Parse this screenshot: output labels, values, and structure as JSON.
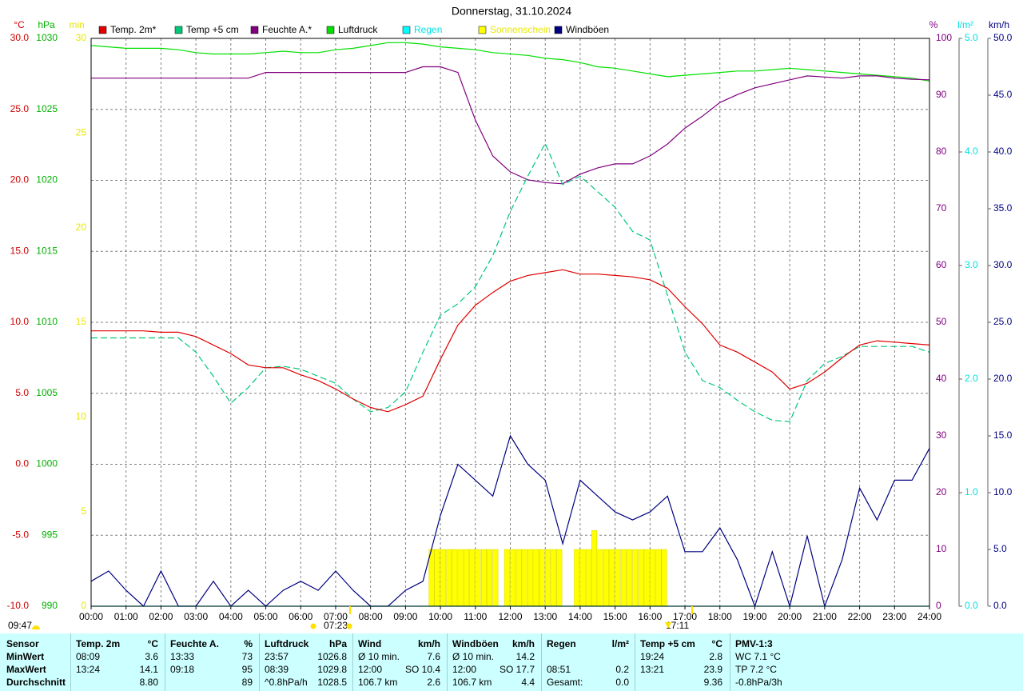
{
  "chart_data": {
    "type": "line",
    "title": "Donnerstag, 31.10.2024",
    "xlim": [
      0,
      24
    ],
    "xticks": [
      {
        "value": 0,
        "label": "00:00"
      },
      {
        "value": 1,
        "label": "01:00"
      },
      {
        "value": 2,
        "label": "02:00"
      },
      {
        "value": 3,
        "label": "03:00"
      },
      {
        "value": 4,
        "label": "04:00"
      },
      {
        "value": 5,
        "label": "05:00"
      },
      {
        "value": 6,
        "label": "06:00"
      },
      {
        "value": 7,
        "label": "07:00"
      },
      {
        "value": 8,
        "label": "08:00"
      },
      {
        "value": 9,
        "label": "09:00"
      },
      {
        "value": 10,
        "label": "10:00"
      },
      {
        "value": 11,
        "label": "11:00"
      },
      {
        "value": 12,
        "label": "12:00"
      },
      {
        "value": 13,
        "label": "13:00"
      },
      {
        "value": 14,
        "label": "14:00"
      },
      {
        "value": 15,
        "label": "15:00"
      },
      {
        "value": 16,
        "label": "16:00"
      },
      {
        "value": 17,
        "label": "17:00"
      },
      {
        "value": 18,
        "label": "18:00"
      },
      {
        "value": 19,
        "label": "19:00"
      },
      {
        "value": 20,
        "label": "20:00"
      },
      {
        "value": 21,
        "label": "21:00"
      },
      {
        "value": 22,
        "label": "22:00"
      },
      {
        "value": 23,
        "label": "23:00"
      },
      {
        "value": 24,
        "label": "24:00"
      }
    ],
    "grid": true,
    "axes": [
      {
        "label": "°C",
        "color": "#d00000",
        "ylim": [
          -10,
          30
        ],
        "yticks": [
          {
            "value": -10,
            "label": "-10.0"
          },
          {
            "value": -5,
            "label": "-5.0"
          },
          {
            "value": 0,
            "label": "0.0"
          },
          {
            "value": 5,
            "label": "5.0"
          },
          {
            "value": 10,
            "label": "10.0"
          },
          {
            "value": 15,
            "label": "15.0"
          },
          {
            "value": 20,
            "label": "20.0"
          },
          {
            "value": 25,
            "label": "25.0"
          },
          {
            "value": 30,
            "label": "30.0"
          }
        ]
      },
      {
        "label": "hPa",
        "color": "#00b000",
        "ylim": [
          990,
          1030
        ],
        "yticks": [
          990,
          995,
          1000,
          1005,
          1010,
          1015,
          1020,
          1025,
          1030
        ]
      },
      {
        "label": "min",
        "color": "#e8e800",
        "ylim": [
          0,
          30
        ],
        "yticks": [
          0,
          5,
          10,
          15,
          20,
          25,
          30
        ]
      },
      {
        "label": "%",
        "color": "#800080",
        "ylim": [
          0,
          100
        ],
        "yticks": [
          0,
          10,
          20,
          30,
          40,
          50,
          60,
          70,
          80,
          90,
          100
        ]
      },
      {
        "label": "l/m²",
        "color": "#00e0e0",
        "ylim": [
          0,
          5
        ],
        "yticks": [
          {
            "value": 0,
            "label": "0.0"
          },
          {
            "value": 1,
            "label": "1.0"
          },
          {
            "value": 2,
            "label": "2.0"
          },
          {
            "value": 3,
            "label": "3.0"
          },
          {
            "value": 4,
            "label": "4.0"
          },
          {
            "value": 5,
            "label": "5.0"
          }
        ]
      },
      {
        "label": "km/h",
        "color": "#000080",
        "ylim": [
          0,
          50
        ],
        "yticks": [
          {
            "value": 0,
            "label": "0.0"
          },
          {
            "value": 5,
            "label": "5.0"
          },
          {
            "value": 10,
            "label": "10.0"
          },
          {
            "value": 15,
            "label": "15.0"
          },
          {
            "value": 20,
            "label": "20.0"
          },
          {
            "value": 25,
            "label": "25.0"
          },
          {
            "value": 30,
            "label": "30.0"
          },
          {
            "value": 35,
            "label": "35.0"
          },
          {
            "value": 40,
            "label": "40.0"
          },
          {
            "value": 45,
            "label": "45.0"
          },
          {
            "value": 50,
            "label": "50.0"
          }
        ]
      }
    ],
    "x": [
      0,
      0.5,
      1,
      1.5,
      2,
      2.5,
      3,
      3.5,
      4,
      4.5,
      5,
      5.5,
      6,
      6.5,
      7,
      7.5,
      8,
      8.5,
      9,
      9.5,
      10,
      10.5,
      11,
      11.5,
      12,
      12.5,
      13,
      13.5,
      14,
      14.5,
      15,
      15.5,
      16,
      16.5,
      17,
      17.5,
      18,
      18.5,
      19,
      19.5,
      20,
      20.5,
      21,
      21.5,
      22,
      22.5,
      23,
      23.5,
      24
    ],
    "series": [
      {
        "name": "Temp. 2m*",
        "color": "#e00000",
        "axis": 0,
        "values": [
          9.4,
          9.4,
          9.4,
          9.4,
          9.3,
          9.3,
          9.0,
          8.4,
          7.8,
          7.0,
          6.8,
          6.8,
          6.3,
          5.9,
          5.3,
          4.6,
          4.0,
          3.7,
          4.2,
          4.8,
          7.4,
          9.8,
          11.2,
          12.1,
          12.9,
          13.3,
          13.5,
          13.7,
          13.4,
          13.4,
          13.3,
          13.2,
          13.0,
          12.4,
          11.1,
          9.9,
          8.4,
          7.9,
          7.2,
          6.5,
          5.3,
          5.7,
          6.5,
          7.5,
          8.4,
          8.7,
          8.6,
          8.5,
          8.4
        ]
      },
      {
        "name": "Temp +5 cm",
        "color": "#00c878",
        "axis": 0,
        "dash": true,
        "values": [
          8.9,
          8.9,
          8.9,
          8.9,
          8.9,
          8.9,
          7.9,
          6.2,
          4.3,
          5.4,
          6.8,
          6.9,
          6.7,
          6.2,
          5.7,
          4.6,
          3.7,
          4.0,
          5.1,
          7.9,
          10.5,
          11.3,
          12.5,
          14.7,
          17.8,
          20.3,
          22.6,
          19.7,
          20.3,
          19.2,
          18.1,
          16.4,
          15.8,
          11.9,
          7.9,
          5.9,
          5.4,
          4.5,
          3.7,
          3.1,
          3.0,
          5.9,
          7.1,
          7.6,
          8.3,
          8.3,
          8.3,
          8.3,
          7.9
        ]
      },
      {
        "name": "Feuchte A.*",
        "color": "#800080",
        "axis": 3,
        "values": [
          93,
          93,
          93,
          93,
          93,
          93,
          93,
          93,
          93,
          93,
          94,
          94,
          94,
          94,
          94,
          94,
          94,
          94,
          94,
          95,
          95,
          94,
          85.6,
          79.3,
          76.5,
          75.1,
          74.6,
          74.4,
          76.1,
          77.2,
          77.9,
          77.9,
          79.3,
          81.4,
          84.2,
          86.3,
          88.7,
          90.1,
          91.3,
          92,
          92.7,
          93.4,
          93.2,
          93,
          93.4,
          93.4,
          93,
          92.8,
          92.7
        ]
      },
      {
        "name": "Luftdruck",
        "color": "#00e000",
        "axis": 1,
        "values": [
          1029.5,
          1029.4,
          1029.3,
          1029.3,
          1029.3,
          1029.2,
          1029.0,
          1028.9,
          1028.9,
          1028.9,
          1029.0,
          1029.1,
          1029.0,
          1029.0,
          1029.2,
          1029.3,
          1029.5,
          1029.7,
          1029.7,
          1029.6,
          1029.4,
          1029.3,
          1029.2,
          1029.0,
          1028.9,
          1028.8,
          1028.6,
          1028.5,
          1028.3,
          1028.0,
          1027.9,
          1027.7,
          1027.5,
          1027.3,
          1027.4,
          1027.5,
          1027.6,
          1027.7,
          1027.7,
          1027.8,
          1027.9,
          1027.8,
          1027.7,
          1027.6,
          1027.5,
          1027.4,
          1027.3,
          1027.2,
          1027.0
        ]
      },
      {
        "name": "Regen",
        "color": "#00ffff",
        "axis": 4,
        "text_color": "#00e0e0",
        "values": [
          0,
          0,
          0,
          0,
          0,
          0,
          0,
          0,
          0,
          0,
          0,
          0,
          0,
          0,
          0,
          0,
          0,
          0,
          0,
          0,
          0,
          0,
          0,
          0,
          0,
          0,
          0,
          0,
          0,
          0,
          0,
          0,
          0,
          0,
          0,
          0,
          0,
          0,
          0,
          0,
          0,
          0,
          0,
          0,
          0,
          0,
          0,
          0,
          0
        ]
      },
      {
        "name": "Sonnenschein",
        "color": "#ffff00",
        "axis": 2,
        "type": "bar",
        "text_color": "#e8e800",
        "x": [
          9.67,
          9.83,
          10,
          10.17,
          10.33,
          10.5,
          10.67,
          10.83,
          11,
          11.17,
          11.33,
          11.5,
          11.83,
          12,
          12.17,
          12.33,
          12.5,
          12.67,
          12.83,
          13,
          13.17,
          13.33,
          13.83,
          14,
          14.17,
          14.33,
          14.5,
          14.67,
          14.83,
          15,
          15.17,
          15.33,
          15.5,
          15.67,
          15.83,
          16,
          16.17,
          16.33
        ],
        "values": [
          3,
          3,
          3,
          3,
          3,
          3,
          3,
          3,
          3,
          3,
          3,
          3,
          3,
          3,
          3,
          3,
          3,
          3,
          3,
          3,
          3,
          3,
          3,
          3,
          3,
          4,
          3,
          3,
          3,
          3,
          3,
          3,
          3,
          3,
          3,
          3,
          3,
          3
        ]
      },
      {
        "name": "Windböen",
        "color": "#000080",
        "axis": 5,
        "values": [
          2.2,
          3.1,
          1.4,
          0,
          3.1,
          0,
          0,
          2.2,
          0,
          1.4,
          0,
          1.4,
          2.2,
          1.4,
          3.1,
          1.4,
          0,
          0,
          1.4,
          2.2,
          8.0,
          12.5,
          11.1,
          9.7,
          15,
          12.5,
          11.1,
          5.5,
          11.1,
          9.7,
          8.3,
          7.6,
          8.3,
          9.7,
          4.8,
          4.8,
          6.9,
          4.1,
          0,
          4.8,
          0,
          6.2,
          0,
          4.1,
          10.4,
          7.6,
          11.1,
          11.1,
          13.9
        ]
      }
    ],
    "markers": [
      "09:47",
      "07:23",
      "17:11"
    ]
  },
  "table": {
    "header": [
      [
        "Sensor",
        null
      ],
      [
        "Temp. 2m",
        "°C"
      ],
      [
        "Feuchte A.",
        "%"
      ],
      [
        "Luftdruck",
        "hPa"
      ],
      [
        "Wind",
        "km/h"
      ],
      [
        "Windböen",
        "km/h"
      ],
      [
        "Regen",
        "l/m²"
      ],
      [
        "Temp +5 cm",
        "°C"
      ],
      [
        "PMV-1:3",
        null
      ]
    ],
    "rows": [
      [
        [
          "MinWert",
          null
        ],
        [
          "08:09",
          "3.6"
        ],
        [
          "13:33",
          "73"
        ],
        [
          "23:57",
          "1026.8"
        ],
        [
          "Ø 10 min.",
          "7.6"
        ],
        [
          "Ø 10 min.",
          "14.2"
        ],
        [
          null,
          null
        ],
        [
          "19:24",
          "2.8"
        ],
        [
          "WC 7.1 °C",
          null
        ]
      ],
      [
        [
          "MaxWert",
          null
        ],
        [
          "13:24",
          "14.1"
        ],
        [
          "09:18",
          "95"
        ],
        [
          "08:39",
          "1029.8"
        ],
        [
          "12:00",
          "SO 10.4"
        ],
        [
          "12:00",
          "SO 17.7"
        ],
        [
          "08:51",
          "0.2"
        ],
        [
          "13:21",
          "23.9"
        ],
        [
          "TP 7.2 °C",
          null
        ]
      ],
      [
        [
          "Durchschnitt",
          null
        ],
        [
          null,
          "8.80"
        ],
        [
          null,
          "89"
        ],
        [
          "^0.8hPa/h",
          "1028.5"
        ],
        [
          "106.7 km",
          "2.6"
        ],
        [
          "106.7 km",
          "4.4"
        ],
        [
          "Gesamt:",
          "0.0"
        ],
        [
          null,
          "9.36"
        ],
        [
          "-0.8hPa/3h",
          null
        ]
      ]
    ]
  }
}
